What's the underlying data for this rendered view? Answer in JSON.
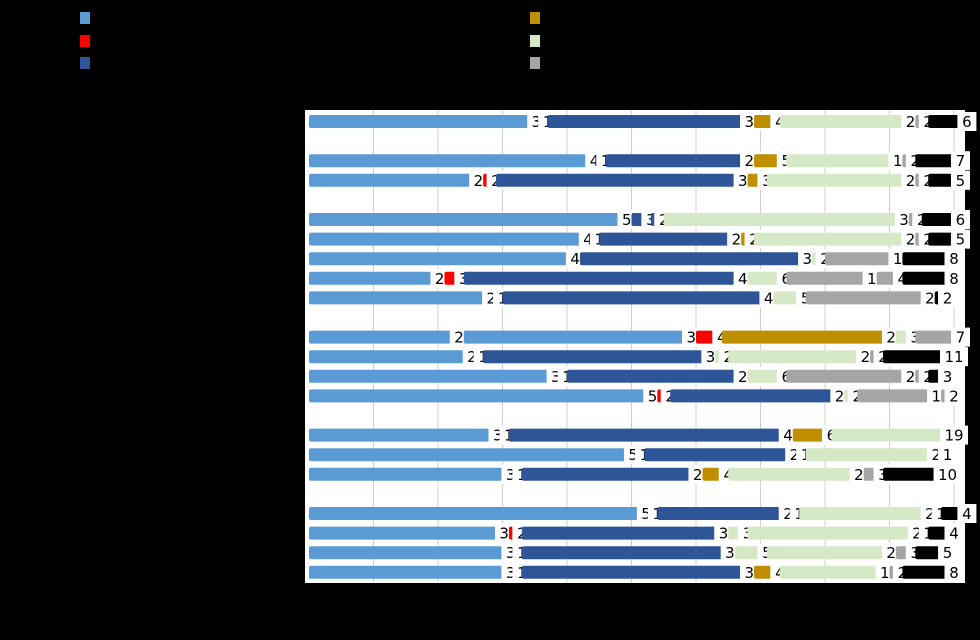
{
  "chart_data": {
    "type": "bar",
    "orientation": "horizontal",
    "stacked": true,
    "percent_scale": true,
    "grid": true,
    "legend_position": "top",
    "xlim": [
      0,
      100
    ],
    "series": [
      {
        "color": "#5b9bd5"
      },
      {
        "color": "#ff0000"
      },
      {
        "color": "#2e5597"
      },
      {
        "color": "#bf8f00"
      },
      {
        "color": "#d6e9c6"
      },
      {
        "color": "#a5a5a5"
      },
      {
        "color": "#000000"
      }
    ],
    "groups": [
      {
        "rows": [
          {
            "values": [
              36,
              1,
              32,
              4,
              21,
              2,
              6
            ]
          }
        ]
      },
      {
        "rows": [
          {
            "values": [
              45,
              1,
              23,
              5,
              18,
              2,
              7
            ]
          },
          {
            "values": [
              27,
              2,
              39,
              3,
              23,
              2,
              5
            ]
          }
        ]
      },
      {
        "rows": [
          {
            "values": [
              50,
              3,
              2,
              38,
              2,
              6
            ]
          },
          {
            "values": [
              44,
              1,
              22,
              2,
              25,
              2,
              5
            ]
          },
          {
            "values": [
              42,
              36,
              2,
              12,
              8
            ]
          },
          {
            "values": [
              21,
              3,
              44,
              6,
              14,
              4,
              8
            ]
          },
          {
            "values": [
              29,
              1,
              42,
              5,
              20,
              2
            ]
          }
        ]
      },
      {
        "rows": [
          {
            "values": [
              24,
              36,
              4,
              27,
              3,
              7
            ]
          },
          {
            "values": [
              26,
              1,
              36,
              2,
              22,
              2,
              11
            ]
          },
          {
            "values": [
              39,
              1,
              28,
              6,
              20,
              2,
              3
            ]
          },
          {
            "values": [
              54,
              2,
              27,
              2,
              13,
              2
            ]
          }
        ]
      },
      {
        "rows": [
          {
            "values": [
              30,
              1,
              44,
              6,
              19
            ]
          },
          {
            "values": [
              51,
              1,
              24,
              1,
              21,
              1
            ]
          },
          {
            "values": [
              32,
              1,
              28,
              4,
              21,
              3,
              10
            ]
          }
        ]
      },
      {
        "rows": [
          {
            "values": [
              53,
              1,
              21,
              1,
              21,
              1,
              4
            ]
          },
          {
            "values": [
              31,
              2,
              32,
              3,
              27,
              1,
              4
            ]
          },
          {
            "values": [
              32,
              1,
              33,
              5,
              20,
              3,
              5
            ]
          },
          {
            "values": [
              32,
              1,
              36,
              4,
              17,
              2,
              8
            ]
          }
        ]
      }
    ],
    "row_segment_series": [
      [
        0,
        1,
        2,
        3,
        4,
        5,
        6
      ],
      [
        0,
        1,
        2,
        3,
        4,
        5,
        6
      ],
      [
        0,
        1,
        2,
        3,
        4,
        5,
        6
      ],
      [
        0,
        2,
        2,
        4,
        5,
        6
      ],
      [
        0,
        1,
        2,
        3,
        4,
        5,
        6
      ],
      [
        0,
        2,
        4,
        5,
        6
      ],
      [
        0,
        1,
        2,
        4,
        5,
        5,
        6
      ],
      [
        0,
        1,
        2,
        4,
        5,
        6
      ],
      [
        0,
        0,
        1,
        3,
        4,
        5,
        6
      ],
      [
        0,
        1,
        2,
        4,
        4,
        5,
        6
      ],
      [
        0,
        1,
        2,
        4,
        5,
        5
      ],
      [
        0,
        1,
        2,
        4,
        5
      ],
      [
        0,
        1,
        2,
        3,
        4,
        5
      ],
      [
        0,
        1,
        2,
        3,
        4,
        5,
        6
      ],
      [
        0,
        1,
        2,
        3,
        4,
        5,
        6
      ],
      [
        0,
        1,
        2,
        3,
        4,
        5,
        6
      ],
      [
        0,
        1,
        2,
        4,
        4,
        5,
        6
      ],
      [
        0,
        1,
        2,
        4,
        4,
        5,
        6
      ]
    ]
  }
}
